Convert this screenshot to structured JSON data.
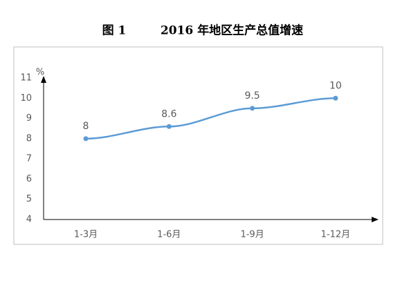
{
  "chart_data": {
    "type": "line",
    "figure_label": "图 1",
    "title": "2016 年地区生产总值增速",
    "y_unit": "%",
    "categories": [
      "1-3月",
      "1-6月",
      "1-9月",
      "1-12月"
    ],
    "values": [
      8,
      8.6,
      9.5,
      10
    ],
    "color": "#5b9bd5",
    "ylim": [
      4,
      11
    ],
    "yticks": [
      4,
      5,
      6,
      7,
      8,
      9,
      10,
      11
    ],
    "grid": false
  }
}
